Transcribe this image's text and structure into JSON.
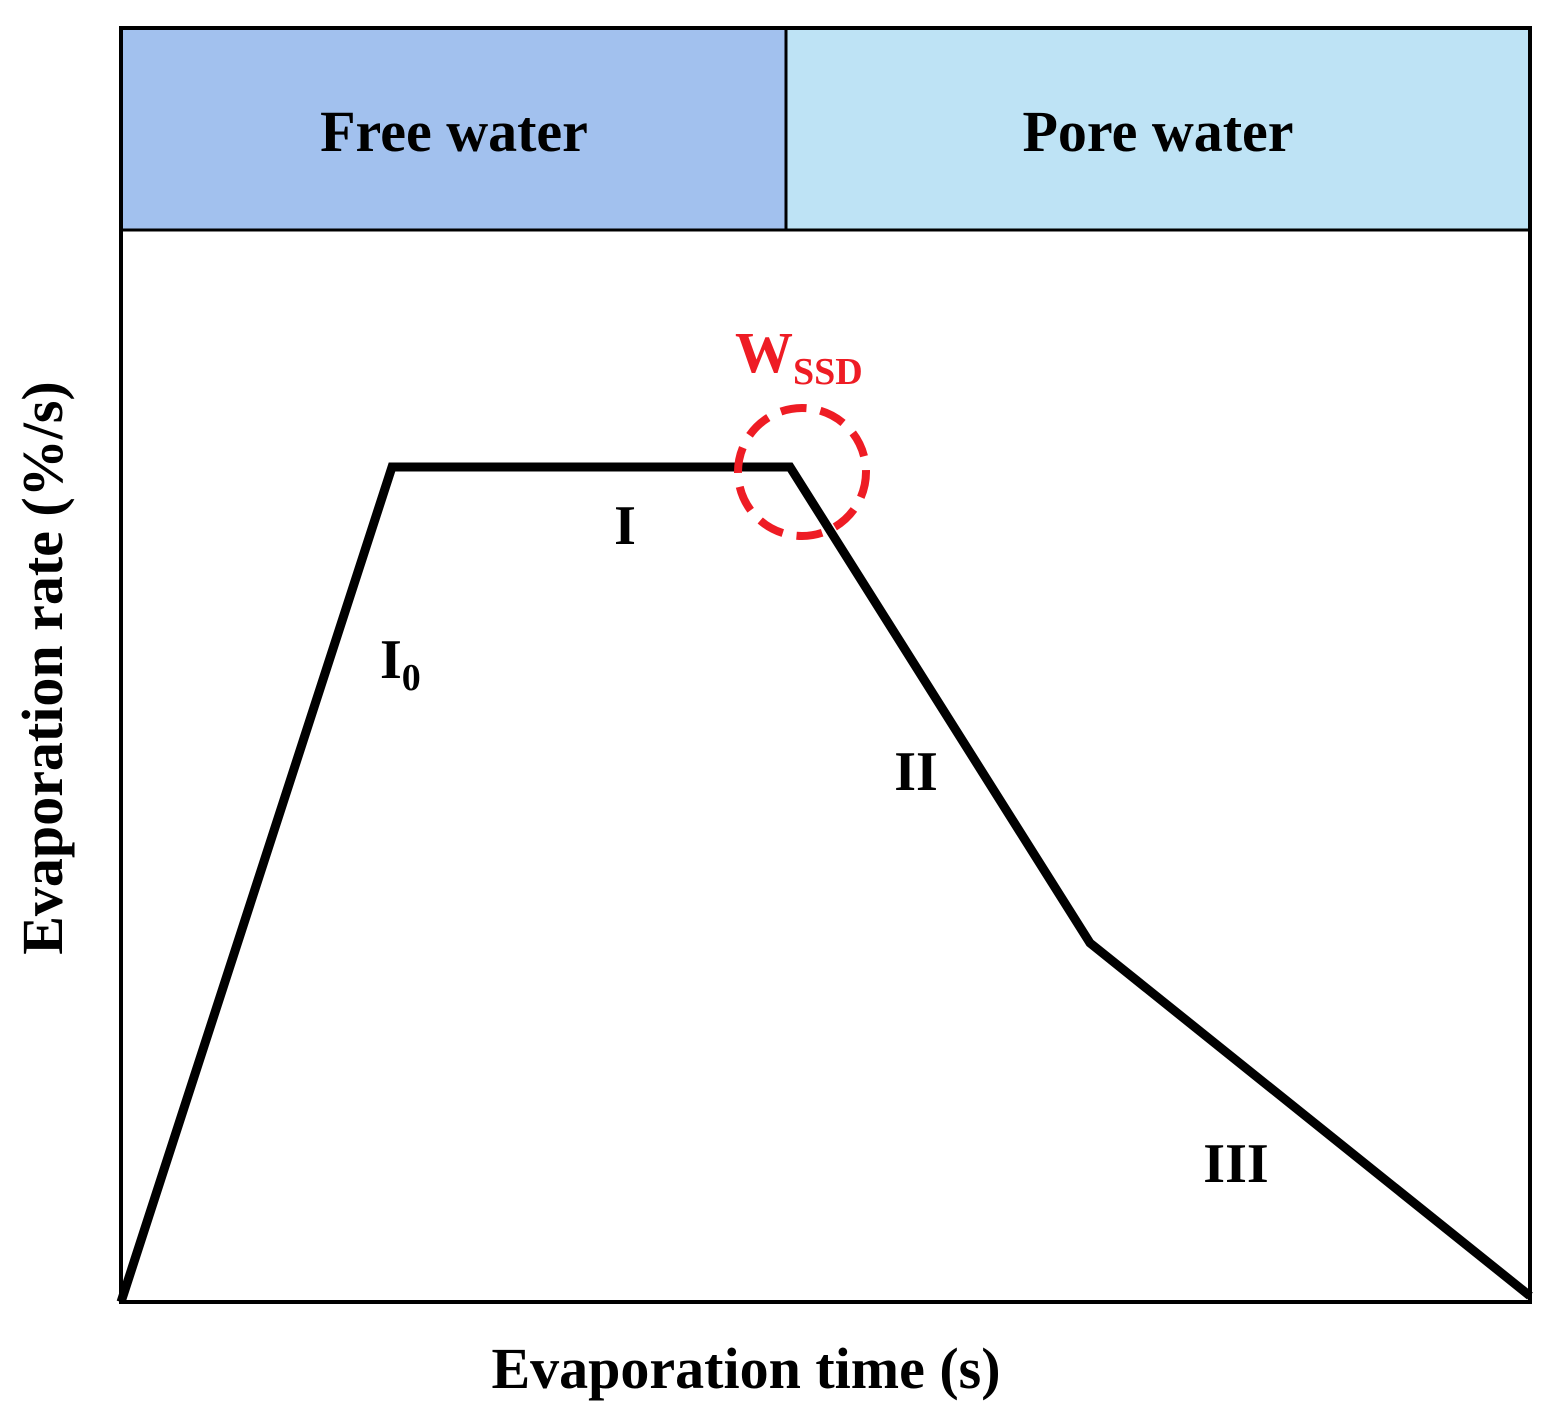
{
  "regions": {
    "free_water": {
      "label": "Free water",
      "color": "#a2c1ee"
    },
    "pore_water": {
      "label": "Pore water",
      "color": "#bee3f5"
    }
  },
  "axes": {
    "x_label": "Evaporation time (s)",
    "y_label": "Evaporation rate (%/s)"
  },
  "stages": {
    "i0": {
      "main": "I",
      "sub": "0"
    },
    "i": {
      "main": "I"
    },
    "ii": {
      "main": "II"
    },
    "iii": {
      "main": "III"
    }
  },
  "marker": {
    "main": "W",
    "sub": "SSD",
    "color": "#ee1c24"
  },
  "curve_color": "#000000"
}
